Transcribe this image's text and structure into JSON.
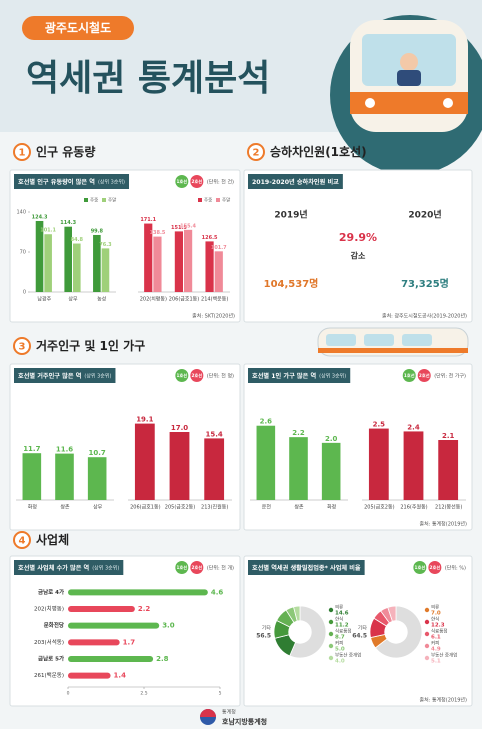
{
  "header": {
    "badge": "광주도시철도",
    "title": "역세권 통계분석"
  },
  "sections": [
    {
      "number": "1",
      "title": "인구 유동량",
      "panels": [
        {
          "title": "호선별 인구 유동량이 많은 역",
          "note": "(상위 3순위)",
          "unit": "(단위: 천 건)",
          "legend": [
            {
              "name": "1호선",
              "color": "#5db74f"
            },
            {
              "name": "2호선",
              "color": "#e8475b"
            }
          ],
          "source": "출처: SKT(2020년)"
        }
      ]
    },
    {
      "number": "2",
      "title": "승하차인원(1호선)",
      "panels": [
        {
          "title": "2019-2020년 승하차인원 비교",
          "source": "출처: 광주도시철도공사(2019-2020년)"
        }
      ]
    },
    {
      "number": "3",
      "title": "거주인구 및 1인 가구",
      "panels": [
        {
          "title": "호선별 거주인구 많은 역",
          "note": "(상위 3순위)",
          "unit": "(단위: 천 명)",
          "legend": [
            {
              "name": "1호선",
              "color": "#5db74f"
            },
            {
              "name": "2호선",
              "color": "#e8475b"
            }
          ]
        },
        {
          "title": "호선별 1인 가구 많은 역",
          "note": "(상위 3순위)",
          "unit": "(단위: 천 가구)",
          "legend": [
            {
              "name": "1호선",
              "color": "#5db74f"
            },
            {
              "name": "2호선",
              "color": "#e8475b"
            }
          ],
          "source": "출처: 통계청(2019년)"
        }
      ]
    },
    {
      "number": "4",
      "title": "사업체",
      "panels": [
        {
          "title": "호선별 사업체 수가 많은 역",
          "note": "(상위 3순위)",
          "unit": "(단위: 천 개)",
          "legend": [
            {
              "name": "1호선",
              "color": "#5db74f"
            },
            {
              "name": "2호선",
              "color": "#e8475b"
            }
          ]
        },
        {
          "title": "호선별 역세권 생활밀접업종* 사업체 비율",
          "unit": "(단위: %)",
          "legend": [
            {
              "name": "1호선",
              "color": "#5db74f"
            },
            {
              "name": "2호선",
              "color": "#e8475b"
            }
          ],
          "source": "출처: 통계청(2019년)"
        }
      ]
    }
  ],
  "ridership": {
    "years": [
      "2019년",
      "2020년"
    ],
    "counts": [
      "104,537명",
      "73,325명"
    ],
    "change": "29.9%",
    "change_label": "감소"
  },
  "chart_data": [
    {
      "type": "bar",
      "categories": [
        "남광주",
        "상무",
        "농성"
      ],
      "series": [
        {
          "name": "주중",
          "color": "#3f9a3a",
          "values": [
            124.3,
            114.3,
            99.8
          ]
        },
        {
          "name": "주말",
          "color": "#9fd07a",
          "values": [
            101.1,
            84.8,
            76.3
          ]
        }
      ],
      "ylim": [
        0,
        140
      ],
      "yticks": [
        0,
        70,
        140
      ]
    },
    {
      "type": "bar",
      "categories": [
        "202(치평동)",
        "206(금호1동)",
        "214(백운동)"
      ],
      "series": [
        {
          "name": "주중",
          "color": "#d9334a",
          "values": [
            171.1,
            151.5,
            126.5
          ]
        },
        {
          "name": "주말",
          "color": "#f08a98",
          "values": [
            138.5,
            155.4,
            101.7
          ]
        }
      ],
      "ylim": [
        0,
        200
      ]
    },
    {
      "type": "bar",
      "categories": [
        "화정",
        "쌍촌",
        "상무"
      ],
      "values": [
        11.7,
        11.6,
        10.7
      ],
      "color": "#5db74f",
      "ylim": [
        0,
        25
      ]
    },
    {
      "type": "bar",
      "categories": [
        "206(금호1동)",
        "205(금호2동)",
        "213(진월동)"
      ],
      "values": [
        19.1,
        17.0,
        15.4
      ],
      "value_labels": [
        "19.1",
        "17.0",
        "15.4"
      ],
      "color": "#c8283e",
      "ylim": [
        0,
        25
      ]
    },
    {
      "type": "bar",
      "categories": [
        "운천",
        "쌍촌",
        "화정"
      ],
      "values": [
        2.6,
        2.2,
        2.0
      ],
      "value_labels": [
        "2.6",
        "2.2",
        "2.0"
      ],
      "color": "#5db74f",
      "ylim": [
        0,
        3.5
      ]
    },
    {
      "type": "bar",
      "categories": [
        "205(금호2동)",
        "216(주월동)",
        "212(봉선동)"
      ],
      "values": [
        2.5,
        2.4,
        2.1
      ],
      "color": "#c8283e",
      "ylim": [
        0,
        3.5
      ]
    },
    {
      "type": "barh",
      "categories": [
        "금남로 4가",
        "202(치평동)",
        "문화전당",
        "203(서석동)",
        "금남로 5가",
        "261(백운동)"
      ],
      "values": [
        4.6,
        2.2,
        3.0,
        1.7,
        2.8,
        1.4
      ],
      "value_labels": [
        "4.6",
        "2.2",
        "3.0",
        "1.7",
        "2.8",
        "1.4"
      ],
      "colors": [
        "#5db74f",
        "#e8475b",
        "#5db74f",
        "#e8475b",
        "#5db74f",
        "#e8475b"
      ],
      "xlim": [
        0,
        5
      ],
      "xticks": [
        0,
        2.5,
        5
      ]
    },
    {
      "type": "pie",
      "categories": [
        "기타",
        "의류",
        "한식",
        "식료품점",
        "커피",
        "부동산 중개업"
      ],
      "values": [
        56.5,
        14.6,
        11.2,
        8.7,
        5.0,
        4.0
      ],
      "value_labels": [
        "56.5",
        "14.6",
        "11.2",
        "8.7",
        "5.0",
        "4.0"
      ],
      "colors": [
        "#dedede",
        "#2f7d32",
        "#46993c",
        "#64b152",
        "#8cc878",
        "#b5dca0"
      ]
    },
    {
      "type": "pie",
      "categories": [
        "기타",
        "의류",
        "한식",
        "식료품점",
        "커피",
        "부동산 중개업"
      ],
      "values": [
        64.5,
        7.0,
        12.3,
        6.1,
        4.9,
        5.1
      ],
      "value_labels": [
        "64.5",
        "7.0",
        "12.3",
        "6.1",
        "4.9",
        "5.1"
      ],
      "colors": [
        "#dedede",
        "#e07a2a",
        "#d9334a",
        "#e8586b",
        "#f08a98",
        "#f5b2bb"
      ]
    }
  ],
  "footer": {
    "org_small": "통계청",
    "org": "호남지방통계청"
  }
}
